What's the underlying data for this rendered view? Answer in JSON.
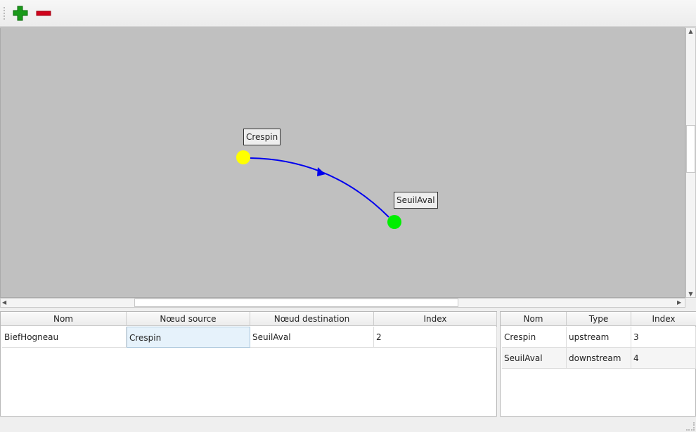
{
  "toolbar": {
    "add_icon": "plus-icon",
    "remove_icon": "minus-icon",
    "colors": {
      "add": "#1a9a1a",
      "remove": "#d0021b"
    }
  },
  "graph": {
    "nodes": [
      {
        "name": "Crespin",
        "color": "#ffff00"
      },
      {
        "name": "SeuilAval",
        "color": "#00ee00"
      }
    ],
    "edge": {
      "from": "Crespin",
      "to": "SeuilAval",
      "color": "#0000ee"
    }
  },
  "reaches_table": {
    "columns": [
      "Nom",
      "Nœud source",
      "Nœud destination",
      "Index"
    ],
    "rows": [
      [
        "BiefHogneau",
        "Crespin",
        "SeuilAval",
        "2"
      ]
    ]
  },
  "nodes_table": {
    "columns": [
      "Nom",
      "Type",
      "Index"
    ],
    "rows": [
      [
        "Crespin",
        "upstream",
        "3"
      ],
      [
        "SeuilAval",
        "downstream",
        "4"
      ]
    ]
  }
}
